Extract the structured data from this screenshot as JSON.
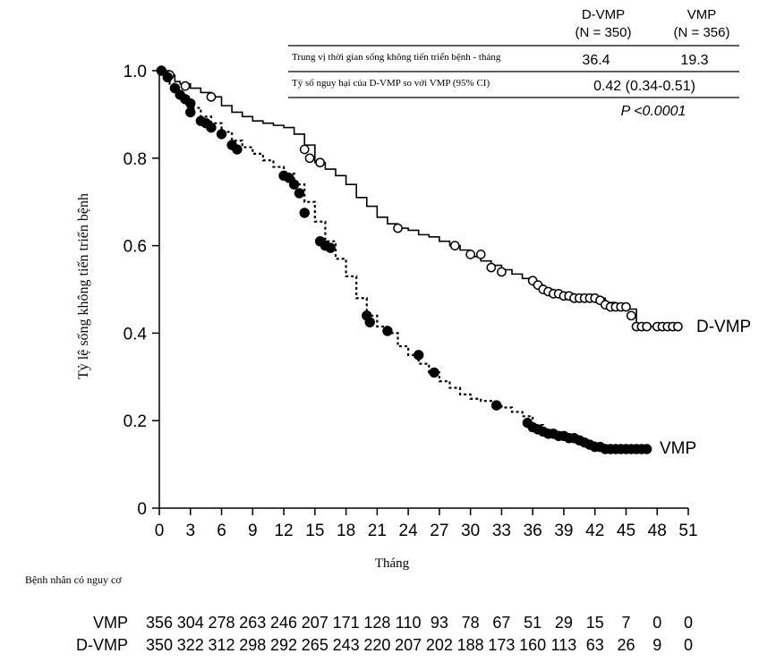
{
  "chart_data": {
    "type": "line",
    "title": "",
    "xlabel": "Tháng",
    "ylabel": "Tỷ lệ sống không tiến triển bệnh",
    "xlim": [
      0,
      51
    ],
    "ylim": [
      0,
      1.0
    ],
    "xticks": [
      0,
      3,
      6,
      9,
      12,
      15,
      18,
      21,
      24,
      27,
      30,
      33,
      36,
      39,
      42,
      45,
      48,
      51
    ],
    "yticks": [
      0,
      0.2,
      0.4,
      0.6,
      0.8,
      1.0
    ],
    "ytick_labels": [
      "0",
      "0.2",
      "0.4",
      "0.6",
      "0.8",
      "1.0"
    ],
    "series": [
      {
        "name": "D-VMP",
        "label": "D-VMP",
        "style": "solid-step-open-circles",
        "points": [
          [
            0,
            1.0
          ],
          [
            1,
            0.99
          ],
          [
            1.5,
            0.975
          ],
          [
            2,
            0.97
          ],
          [
            3,
            0.96
          ],
          [
            4,
            0.95
          ],
          [
            5,
            0.94
          ],
          [
            6,
            0.92
          ],
          [
            7,
            0.905
          ],
          [
            8,
            0.895
          ],
          [
            9,
            0.885
          ],
          [
            10,
            0.88
          ],
          [
            11,
            0.875
          ],
          [
            12,
            0.87
          ],
          [
            13,
            0.855
          ],
          [
            14,
            0.83
          ],
          [
            15,
            0.79
          ],
          [
            16,
            0.775
          ],
          [
            17,
            0.76
          ],
          [
            18,
            0.74
          ],
          [
            19,
            0.71
          ],
          [
            20,
            0.69
          ],
          [
            21,
            0.665
          ],
          [
            22,
            0.65
          ],
          [
            23,
            0.64
          ],
          [
            24,
            0.635
          ],
          [
            25,
            0.625
          ],
          [
            26,
            0.62
          ],
          [
            27,
            0.61
          ],
          [
            28,
            0.6
          ],
          [
            29,
            0.59
          ],
          [
            30,
            0.575
          ],
          [
            31,
            0.565
          ],
          [
            32,
            0.555
          ],
          [
            33,
            0.545
          ],
          [
            34,
            0.535
          ],
          [
            35,
            0.525
          ],
          [
            36,
            0.51
          ],
          [
            37,
            0.5
          ],
          [
            38,
            0.49
          ],
          [
            40,
            0.485
          ],
          [
            42,
            0.48
          ],
          [
            43,
            0.47
          ],
          [
            44,
            0.46
          ],
          [
            45,
            0.455
          ],
          [
            46,
            0.415
          ],
          [
            47,
            0.415
          ],
          [
            50,
            0.415
          ]
        ],
        "censors": [
          [
            1,
            0.99
          ],
          [
            2.5,
            0.965
          ],
          [
            5,
            0.94
          ],
          [
            14,
            0.82
          ],
          [
            14.5,
            0.8
          ],
          [
            15.5,
            0.79
          ],
          [
            23,
            0.64
          ],
          [
            28.5,
            0.6
          ],
          [
            30,
            0.58
          ],
          [
            31,
            0.58
          ],
          [
            32,
            0.55
          ],
          [
            33,
            0.54
          ],
          [
            36,
            0.52
          ],
          [
            36.5,
            0.51
          ],
          [
            37,
            0.5
          ],
          [
            37.5,
            0.495
          ],
          [
            38,
            0.49
          ],
          [
            38.5,
            0.49
          ],
          [
            39,
            0.485
          ],
          [
            39.5,
            0.485
          ],
          [
            40,
            0.48
          ],
          [
            40.5,
            0.48
          ],
          [
            41,
            0.48
          ],
          [
            41.5,
            0.48
          ],
          [
            42,
            0.48
          ],
          [
            42.5,
            0.475
          ],
          [
            43,
            0.465
          ],
          [
            43.5,
            0.46
          ],
          [
            44,
            0.46
          ],
          [
            44.5,
            0.46
          ],
          [
            45,
            0.46
          ],
          [
            45.5,
            0.44
          ],
          [
            46,
            0.415
          ],
          [
            46.5,
            0.415
          ],
          [
            47,
            0.415
          ],
          [
            48,
            0.415
          ],
          [
            48.5,
            0.415
          ],
          [
            49,
            0.415
          ],
          [
            49.5,
            0.415
          ],
          [
            50,
            0.415
          ]
        ]
      },
      {
        "name": "VMP",
        "label": "VMP",
        "style": "dotted-step-filled-circles",
        "points": [
          [
            0,
            1.0
          ],
          [
            0.5,
            0.99
          ],
          [
            1,
            0.97
          ],
          [
            1.5,
            0.95
          ],
          [
            2,
            0.94
          ],
          [
            3,
            0.915
          ],
          [
            4,
            0.895
          ],
          [
            5,
            0.88
          ],
          [
            6,
            0.86
          ],
          [
            7,
            0.84
          ],
          [
            8,
            0.825
          ],
          [
            9,
            0.81
          ],
          [
            10,
            0.795
          ],
          [
            11,
            0.78
          ],
          [
            12,
            0.765
          ],
          [
            13,
            0.74
          ],
          [
            14,
            0.7
          ],
          [
            15,
            0.655
          ],
          [
            16,
            0.61
          ],
          [
            17,
            0.57
          ],
          [
            18,
            0.53
          ],
          [
            19,
            0.48
          ],
          [
            20,
            0.44
          ],
          [
            21,
            0.415
          ],
          [
            22,
            0.4
          ],
          [
            23,
            0.37
          ],
          [
            24,
            0.35
          ],
          [
            25,
            0.33
          ],
          [
            26,
            0.31
          ],
          [
            27,
            0.29
          ],
          [
            28,
            0.275
          ],
          [
            29,
            0.26
          ],
          [
            30,
            0.25
          ],
          [
            31,
            0.245
          ],
          [
            32,
            0.24
          ],
          [
            33,
            0.23
          ],
          [
            34,
            0.22
          ],
          [
            35,
            0.21
          ],
          [
            36,
            0.19
          ],
          [
            37,
            0.175
          ],
          [
            38,
            0.17
          ],
          [
            39,
            0.165
          ],
          [
            40,
            0.16
          ],
          [
            41,
            0.15
          ],
          [
            42,
            0.14
          ],
          [
            43,
            0.135
          ],
          [
            47,
            0.135
          ]
        ],
        "censors": [
          [
            0.2,
            1.0
          ],
          [
            0.8,
            0.985
          ],
          [
            1.5,
            0.96
          ],
          [
            2,
            0.945
          ],
          [
            2.5,
            0.935
          ],
          [
            3,
            0.925
          ],
          [
            3,
            0.905
          ],
          [
            4,
            0.885
          ],
          [
            4.5,
            0.88
          ],
          [
            5,
            0.87
          ],
          [
            6,
            0.855
          ],
          [
            7,
            0.83
          ],
          [
            7.5,
            0.82
          ],
          [
            12,
            0.76
          ],
          [
            12.5,
            0.755
          ],
          [
            13,
            0.74
          ],
          [
            13.5,
            0.72
          ],
          [
            14,
            0.675
          ],
          [
            15.5,
            0.61
          ],
          [
            16,
            0.6
          ],
          [
            16.5,
            0.595
          ],
          [
            20,
            0.44
          ],
          [
            20.3,
            0.425
          ],
          [
            22,
            0.405
          ],
          [
            25,
            0.35
          ],
          [
            26.5,
            0.31
          ],
          [
            32.5,
            0.235
          ],
          [
            35.5,
            0.195
          ],
          [
            36,
            0.185
          ],
          [
            36.5,
            0.18
          ],
          [
            37,
            0.175
          ],
          [
            37.5,
            0.17
          ],
          [
            38,
            0.17
          ],
          [
            38.5,
            0.165
          ],
          [
            39,
            0.165
          ],
          [
            39.5,
            0.16
          ],
          [
            40,
            0.16
          ],
          [
            40.5,
            0.155
          ],
          [
            41,
            0.15
          ],
          [
            41.5,
            0.145
          ],
          [
            42,
            0.14
          ],
          [
            42.5,
            0.14
          ],
          [
            43,
            0.135
          ],
          [
            43.5,
            0.135
          ],
          [
            44,
            0.135
          ],
          [
            44.5,
            0.135
          ],
          [
            45,
            0.135
          ],
          [
            45.5,
            0.135
          ],
          [
            46,
            0.135
          ],
          [
            46.5,
            0.135
          ],
          [
            47,
            0.135
          ]
        ]
      }
    ],
    "annotation_table": {
      "col_headers": [
        {
          "name": "D-VMP",
          "n": "(N = 350)"
        },
        {
          "name": "VMP",
          "n": "(N = 356)"
        }
      ],
      "rows": [
        {
          "label": "Trung vị thời gian sống không tiến triển bệnh - tháng",
          "values": [
            "36.4",
            "19.3"
          ]
        },
        {
          "label": "Tỷ số nguy hại của D-VMP so với VMP (95% CI)",
          "values": [
            "0.42 (0.34-0.51)"
          ]
        }
      ],
      "p_value": "P <0.0001"
    },
    "at_risk": {
      "title": "Bệnh nhân có nguy cơ",
      "rows": [
        {
          "label": "VMP",
          "values": [
            "356",
            "304",
            "278",
            "263",
            "246",
            "207",
            "171",
            "128",
            "110",
            "93",
            "78",
            "67",
            "51",
            "29",
            "15",
            "7",
            "0",
            "0"
          ]
        },
        {
          "label": "D-VMP",
          "values": [
            "350",
            "322",
            "312",
            "298",
            "292",
            "265",
            "243",
            "220",
            "207",
            "202",
            "188",
            "173",
            "160",
            "113",
            "63",
            "26",
            "9",
            "0"
          ]
        }
      ]
    }
  }
}
